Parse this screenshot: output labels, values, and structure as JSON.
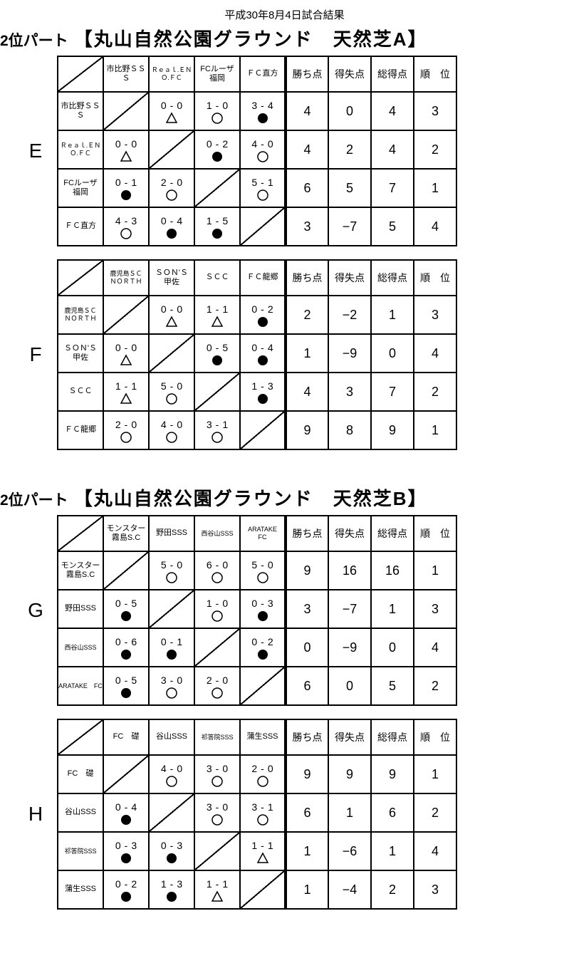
{
  "date": "平成30年8月4日試合結果",
  "part_label": "2位パート",
  "venue_a": "【丸山自然公園グラウンド　天然芝A】",
  "venue_b": "【丸山自然公園グラウンド　天然芝B】",
  "stat_headers": [
    "勝ち点",
    "得失点",
    "総得点",
    "順　位"
  ],
  "groups": [
    {
      "letter": "E",
      "teams": [
        "市比野ＳＳＳ",
        "Ｒｅａｌ.ＥＮＯ.ＦＣ",
        "FCルーザ<br>福岡",
        "ＦＣ直方"
      ],
      "team_sizes": [
        "med",
        "small",
        "med",
        "med"
      ],
      "matches": [
        [
          null,
          {
            "s": [
              0,
              0
            ],
            "m": "tri"
          },
          {
            "s": [
              1,
              0
            ],
            "m": "win"
          },
          {
            "s": [
              3,
              4
            ],
            "m": "lose"
          }
        ],
        [
          {
            "s": [
              0,
              0
            ],
            "m": "tri"
          },
          null,
          {
            "s": [
              0,
              2
            ],
            "m": "lose"
          },
          {
            "s": [
              4,
              0
            ],
            "m": "win"
          }
        ],
        [
          {
            "s": [
              0,
              1
            ],
            "m": "lose"
          },
          {
            "s": [
              2,
              0
            ],
            "m": "win"
          },
          null,
          {
            "s": [
              5,
              1
            ],
            "m": "win"
          }
        ],
        [
          {
            "s": [
              4,
              3
            ],
            "m": "win"
          },
          {
            "s": [
              0,
              4
            ],
            "m": "lose"
          },
          {
            "s": [
              1,
              5
            ],
            "m": "lose"
          },
          null
        ]
      ],
      "stats": [
        [
          4,
          0,
          4,
          3
        ],
        [
          4,
          2,
          4,
          2
        ],
        [
          6,
          5,
          7,
          1
        ],
        [
          3,
          -7,
          5,
          4
        ]
      ]
    },
    {
      "letter": "F",
      "teams": [
        "鹿児島ＳＣ<br>ＮＯＲＴＨ",
        "ＳＯＮ'Ｓ<br>甲佐",
        "ＳＣＣ",
        "ＦＣ龍郷"
      ],
      "team_sizes": [
        "small",
        "med",
        "med",
        "med"
      ],
      "matches": [
        [
          null,
          {
            "s": [
              0,
              0
            ],
            "m": "tri"
          },
          {
            "s": [
              1,
              1
            ],
            "m": "tri"
          },
          {
            "s": [
              0,
              2
            ],
            "m": "lose"
          }
        ],
        [
          {
            "s": [
              0,
              0
            ],
            "m": "tri"
          },
          null,
          {
            "s": [
              0,
              5
            ],
            "m": "lose"
          },
          {
            "s": [
              0,
              4
            ],
            "m": "lose"
          }
        ],
        [
          {
            "s": [
              1,
              1
            ],
            "m": "tri"
          },
          {
            "s": [
              5,
              0
            ],
            "m": "win"
          },
          null,
          {
            "s": [
              1,
              3
            ],
            "m": "lose"
          }
        ],
        [
          {
            "s": [
              2,
              0
            ],
            "m": "win"
          },
          {
            "s": [
              4,
              0
            ],
            "m": "win"
          },
          {
            "s": [
              3,
              1
            ],
            "m": "win"
          },
          null
        ]
      ],
      "stats": [
        [
          2,
          -2,
          1,
          3
        ],
        [
          1,
          -9,
          0,
          4
        ],
        [
          4,
          3,
          7,
          2
        ],
        [
          9,
          8,
          9,
          1
        ]
      ]
    },
    {
      "letter": "G",
      "teams": [
        "モンスター<br>霧島S.C",
        "野田SSS",
        "西谷山SSS",
        "ARATAKE　FC"
      ],
      "team_sizes": [
        "med",
        "med",
        "small",
        "small"
      ],
      "matches": [
        [
          null,
          {
            "s": [
              5,
              0
            ],
            "m": "win"
          },
          {
            "s": [
              6,
              0
            ],
            "m": "win"
          },
          {
            "s": [
              5,
              0
            ],
            "m": "win"
          }
        ],
        [
          {
            "s": [
              0,
              5
            ],
            "m": "lose"
          },
          null,
          {
            "s": [
              1,
              0
            ],
            "m": "win"
          },
          {
            "s": [
              0,
              3
            ],
            "m": "lose"
          }
        ],
        [
          {
            "s": [
              0,
              6
            ],
            "m": "lose"
          },
          {
            "s": [
              0,
              1
            ],
            "m": "lose"
          },
          null,
          {
            "s": [
              0,
              2
            ],
            "m": "lose"
          }
        ],
        [
          {
            "s": [
              0,
              5
            ],
            "m": "lose"
          },
          {
            "s": [
              3,
              0
            ],
            "m": "win"
          },
          {
            "s": [
              2,
              0
            ],
            "m": "win"
          },
          null
        ]
      ],
      "stats": [
        [
          9,
          16,
          16,
          1
        ],
        [
          3,
          -7,
          1,
          3
        ],
        [
          0,
          -9,
          0,
          4
        ],
        [
          6,
          0,
          5,
          2
        ]
      ]
    },
    {
      "letter": "H",
      "teams": [
        "FC　礎",
        "谷山SSS",
        "祁答院SSS",
        "蒲生SSS"
      ],
      "team_sizes": [
        "med",
        "med",
        "small",
        "med"
      ],
      "matches": [
        [
          null,
          {
            "s": [
              4,
              0
            ],
            "m": "win"
          },
          {
            "s": [
              3,
              0
            ],
            "m": "win"
          },
          {
            "s": [
              2,
              0
            ],
            "m": "win"
          }
        ],
        [
          {
            "s": [
              0,
              4
            ],
            "m": "lose"
          },
          null,
          {
            "s": [
              3,
              0
            ],
            "m": "win"
          },
          {
            "s": [
              3,
              1
            ],
            "m": "win"
          }
        ],
        [
          {
            "s": [
              0,
              3
            ],
            "m": "lose"
          },
          {
            "s": [
              0,
              3
            ],
            "m": "lose"
          },
          null,
          {
            "s": [
              1,
              1
            ],
            "m": "tri"
          }
        ],
        [
          {
            "s": [
              0,
              2
            ],
            "m": "lose"
          },
          {
            "s": [
              1,
              3
            ],
            "m": "lose"
          },
          {
            "s": [
              1,
              1
            ],
            "m": "tri"
          },
          null
        ]
      ],
      "stats": [
        [
          9,
          9,
          9,
          1
        ],
        [
          6,
          1,
          6,
          2
        ],
        [
          1,
          -6,
          1,
          4
        ],
        [
          1,
          -4,
          2,
          3
        ]
      ]
    }
  ]
}
